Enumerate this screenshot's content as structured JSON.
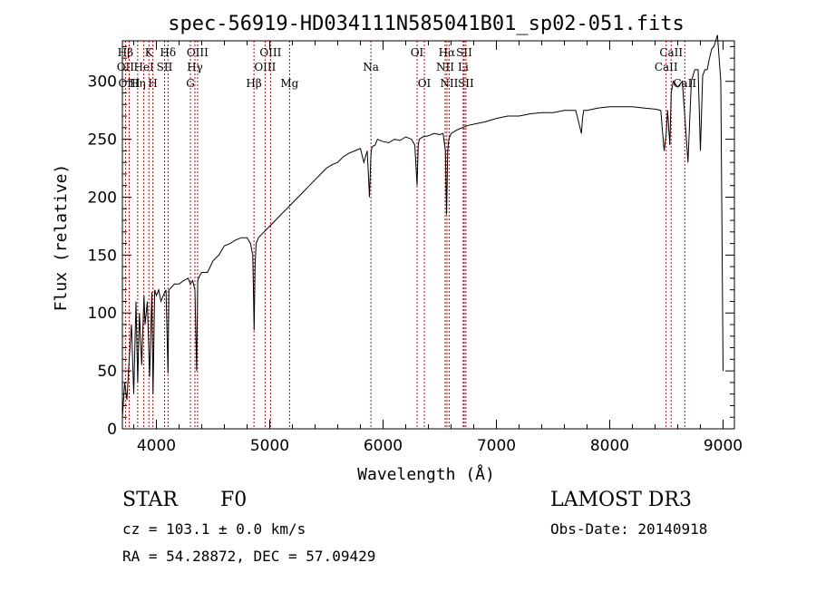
{
  "title": "spec-56919-HD034111N585041B01_sp02-051.fits",
  "chart_data": {
    "type": "line",
    "title": "spec-56919-HD034111N585041B01_sp02-051.fits",
    "xlabel": "Wavelength (Å)",
    "ylabel": "Flux (relative)",
    "xlim": [
      3700,
      9100
    ],
    "ylim": [
      0,
      335
    ],
    "xticks": [
      4000,
      5000,
      6000,
      7000,
      8000,
      9000
    ],
    "yticks": [
      0,
      50,
      100,
      150,
      200,
      250,
      300
    ],
    "grid": false,
    "series": [
      {
        "x": [
          3700,
          3720,
          3740,
          3760,
          3780,
          3800,
          3820,
          3835,
          3850,
          3870,
          3890,
          3900,
          3920,
          3940,
          3960,
          3970,
          3985,
          4000,
          4020,
          4040,
          4060,
          4085,
          4102,
          4110,
          4130,
          4160,
          4200,
          4240,
          4280,
          4300,
          4320,
          4340,
          4355,
          4365,
          4380,
          4400,
          4450,
          4500,
          4550,
          4600,
          4650,
          4700,
          4750,
          4800,
          4830,
          4850,
          4862,
          4870,
          4880,
          4900,
          4950,
          5000,
          5050,
          5100,
          5150,
          5200,
          5250,
          5300,
          5350,
          5400,
          5450,
          5500,
          5550,
          5600,
          5650,
          5700,
          5750,
          5800,
          5830,
          5860,
          5870,
          5880,
          5890,
          5895,
          5900,
          5910,
          5930,
          5950,
          6000,
          6050,
          6100,
          6150,
          6200,
          6250,
          6280,
          6300,
          6310,
          6320,
          6350,
          6400,
          6450,
          6500,
          6530,
          6550,
          6560,
          6563,
          6570,
          6580,
          6600,
          6650,
          6700,
          6750,
          6800,
          6900,
          7000,
          7100,
          7200,
          7300,
          7400,
          7500,
          7600,
          7700,
          7750,
          7760,
          7770,
          7800,
          7900,
          8000,
          8100,
          8200,
          8300,
          8400,
          8450,
          8480,
          8498,
          8510,
          8530,
          8542,
          8560,
          8600,
          8640,
          8662,
          8690,
          8720,
          8750,
          8780,
          8800,
          8820,
          8840,
          8860,
          8880,
          8900,
          8920,
          8950,
          8980,
          9000
        ],
        "y": [
          10,
          40,
          25,
          60,
          90,
          30,
          110,
          40,
          100,
          55,
          115,
          90,
          110,
          45,
          118,
          30,
          120,
          115,
          120,
          110,
          115,
          120,
          48,
          120,
          122,
          125,
          125,
          128,
          130,
          125,
          128,
          120,
          50,
          128,
          132,
          135,
          135,
          145,
          150,
          158,
          160,
          163,
          165,
          165,
          160,
          150,
          85,
          140,
          160,
          165,
          170,
          175,
          180,
          185,
          190,
          195,
          200,
          205,
          210,
          215,
          220,
          225,
          228,
          230,
          235,
          238,
          240,
          242,
          230,
          240,
          220,
          200,
          230,
          240,
          242,
          244,
          245,
          250,
          248,
          247,
          250,
          249,
          252,
          250,
          245,
          210,
          245,
          250,
          252,
          253,
          255,
          254,
          255,
          240,
          185,
          200,
          240,
          250,
          255,
          258,
          260,
          262,
          263,
          265,
          268,
          270,
          270,
          272,
          273,
          273,
          275,
          275,
          255,
          268,
          275,
          275,
          277,
          278,
          278,
          278,
          277,
          276,
          275,
          240,
          255,
          275,
          245,
          290,
          300,
          295,
          300,
          270,
          230,
          300,
          310,
          310,
          240,
          305,
          310,
          310,
          320,
          328,
          330,
          340,
          300,
          50
        ]
      }
    ],
    "spectral_lines": [
      {
        "wavelength": 3727,
        "label": "OII",
        "row": 2
      },
      {
        "wavelength": 3760,
        "label": "OIII",
        "row": 3
      },
      {
        "wavelength": 3835,
        "label": "Hη",
        "row": 3
      },
      {
        "wavelength": 3889,
        "label": "HeI",
        "row": 2
      },
      {
        "wavelength": 3934,
        "label": "K",
        "row": 1
      },
      {
        "wavelength": 3969,
        "label": "H",
        "row": 3
      },
      {
        "wavelength": 4072,
        "label": "SII",
        "row": 2
      },
      {
        "wavelength": 4102,
        "label": "Hδ",
        "row": 1
      },
      {
        "wavelength": 4300,
        "label": "G",
        "row": 3
      },
      {
        "wavelength": 4340,
        "label": "Hγ",
        "row": 2
      },
      {
        "wavelength": 4363,
        "label": "OIII",
        "row": 1
      },
      {
        "wavelength": 4861,
        "label": "Hβ",
        "row": 3
      },
      {
        "wavelength": 4959,
        "label": "OIII",
        "row": 2
      },
      {
        "wavelength": 5007,
        "label": "OIII",
        "row": 1
      },
      {
        "wavelength": 5175,
        "label": "Mg",
        "row": 3
      },
      {
        "wavelength": 5893,
        "label": "Na",
        "row": 2
      },
      {
        "wavelength": 6300,
        "label": "OI",
        "row": 1
      },
      {
        "wavelength": 6364,
        "label": "OI",
        "row": 3
      },
      {
        "wavelength": 6548,
        "label": "NII",
        "row": 2
      },
      {
        "wavelength": 6563,
        "label": "Hα",
        "row": 1
      },
      {
        "wavelength": 6583,
        "label": "NII",
        "row": 3
      },
      {
        "wavelength": 6707,
        "label": "Li",
        "row": 2
      },
      {
        "wavelength": 6716,
        "label": "SII",
        "row": 1
      },
      {
        "wavelength": 6731,
        "label": "SII",
        "row": 3
      },
      {
        "wavelength": 8498,
        "label": "CaII",
        "row": 2
      },
      {
        "wavelength": 8542,
        "label": "CaII",
        "row": 1
      },
      {
        "wavelength": 8662,
        "label": "CaII",
        "row": 3
      }
    ],
    "first_row_extra_labels": [
      "Hβ"
    ],
    "colors": {
      "spectrum": "#000000",
      "line_markers": "#cc0000",
      "frame": "#000000"
    }
  },
  "info": {
    "object_class": "STAR",
    "subclass": "F0",
    "survey": "LAMOST DR3",
    "cz": "cz = 103.1 ± 0.0 km/s",
    "obs_date": "Obs-Date: 20140918",
    "coords": "RA =  54.28872, DEC =  57.09429"
  }
}
